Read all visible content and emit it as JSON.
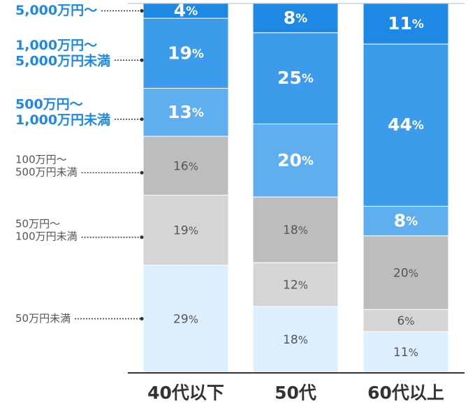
{
  "chart_data": {
    "type": "stacked-bar",
    "categories": [
      "40代以下",
      "50代",
      "60代以上"
    ],
    "series": [
      {
        "name": "50万円未満",
        "color": "#ddeefc",
        "values": [
          29,
          18,
          11
        ],
        "value_labels": [
          "29%",
          "18%",
          "11%"
        ]
      },
      {
        "name": "50万円～100万円未満",
        "color": "#d5d5d5",
        "values": [
          19,
          12,
          6
        ],
        "value_labels": [
          "19%",
          "12%",
          "6%"
        ]
      },
      {
        "name": "100万円～500万円未満",
        "color": "#bdbdbd",
        "values": [
          16,
          18,
          20
        ],
        "value_labels": [
          "16%",
          "18%",
          "20%"
        ]
      },
      {
        "name": "500万円～1,000万円未満",
        "color": "#5eaef0",
        "values": [
          13,
          20,
          8
        ],
        "value_labels": [
          "13%",
          "20%",
          "8%"
        ]
      },
      {
        "name": "1,000万円～5,000万円未満",
        "color": "#3c9bea",
        "values": [
          19,
          25,
          44
        ],
        "value_labels": [
          "19%",
          "25%",
          "44%"
        ]
      },
      {
        "name": "5,000万円～",
        "color": "#1e88e5",
        "values": [
          4,
          8,
          11
        ],
        "value_labels": [
          "4%",
          "8%",
          "11%"
        ]
      }
    ]
  }
}
